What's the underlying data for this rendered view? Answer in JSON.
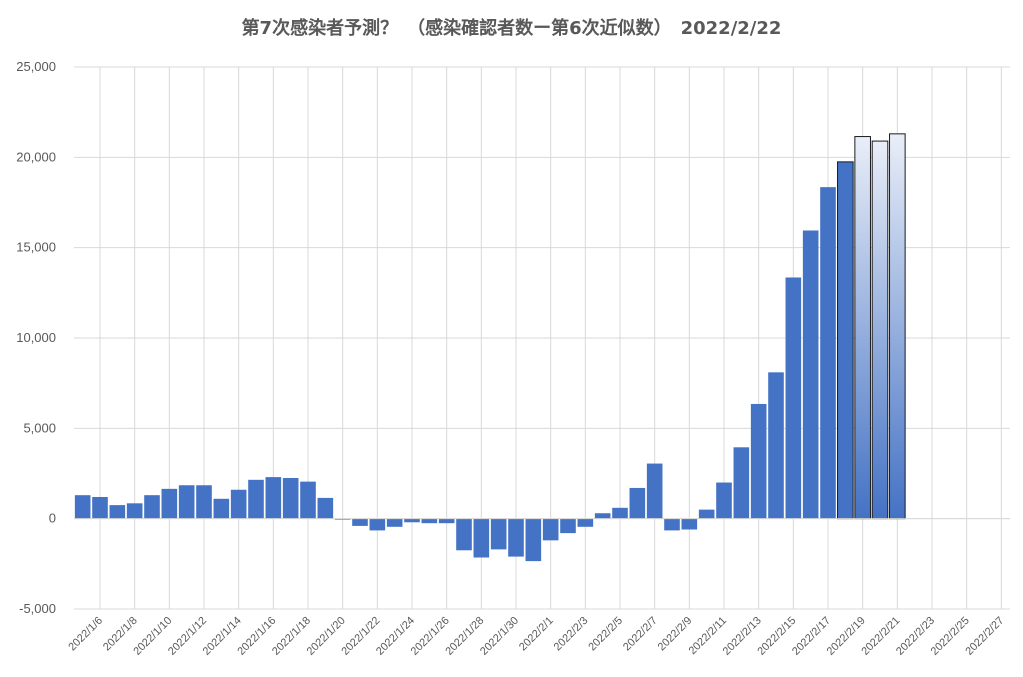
{
  "chart_data": {
    "type": "bar",
    "title": "第7次感染者予測？　（感染確認者数ー第6次近似数）　2022/2/22",
    "xlabel": "",
    "ylabel": "",
    "ylim": [
      -5000,
      25000
    ],
    "y_ticks": [
      "-5,000",
      "0",
      "5,000",
      "10,000",
      "15,000",
      "20,000",
      "25,000"
    ],
    "grid": true,
    "legend": "none",
    "x_tick_labels": [
      "2022/1/6",
      "2022/1/8",
      "2022/1/10",
      "2022/1/12",
      "2022/1/14",
      "2022/1/16",
      "2022/1/18",
      "2022/1/20",
      "2022/1/22",
      "2022/1/24",
      "2022/1/26",
      "2022/1/28",
      "2022/1/30",
      "2022/2/1",
      "2022/2/3",
      "2022/2/5",
      "2022/2/7",
      "2022/2/9",
      "2022/2/11",
      "2022/2/13",
      "2022/2/15",
      "2022/2/17",
      "2022/2/19",
      "2022/2/21",
      "2022/2/23",
      "2022/2/25",
      "2022/2/27"
    ],
    "categories": [
      "2022/1/5",
      "2022/1/6",
      "2022/1/7",
      "2022/1/8",
      "2022/1/9",
      "2022/1/10",
      "2022/1/11",
      "2022/1/12",
      "2022/1/13",
      "2022/1/14",
      "2022/1/15",
      "2022/1/16",
      "2022/1/17",
      "2022/1/18",
      "2022/1/19",
      "2022/1/20",
      "2022/1/21",
      "2022/1/22",
      "2022/1/23",
      "2022/1/24",
      "2022/1/25",
      "2022/1/26",
      "2022/1/27",
      "2022/1/28",
      "2022/1/29",
      "2022/1/30",
      "2022/1/31",
      "2022/2/1",
      "2022/2/2",
      "2022/2/3",
      "2022/2/4",
      "2022/2/5",
      "2022/2/6",
      "2022/2/7",
      "2022/2/8",
      "2022/2/9",
      "2022/2/10",
      "2022/2/11",
      "2022/2/12",
      "2022/2/13",
      "2022/2/14",
      "2022/2/15",
      "2022/2/16",
      "2022/2/17",
      "2022/2/18",
      "2022/2/19",
      "2022/2/20",
      "2022/2/21",
      "2022/2/22",
      "2022/2/23",
      "2022/2/24",
      "2022/2/25",
      "2022/2/26",
      "2022/2/27"
    ],
    "series": [
      {
        "values": [
          1300,
          1200,
          750,
          850,
          1300,
          1650,
          1850,
          1850,
          1100,
          1600,
          2150,
          2300,
          2250,
          2050,
          1150,
          -50,
          -400,
          -650,
          -450,
          -200,
          -250,
          -250,
          -1750,
          -2150,
          -1700,
          -2100,
          -2350,
          -1200,
          -800,
          -450,
          300,
          600,
          1700,
          3050,
          -650,
          -600,
          500,
          2000,
          3950,
          6350,
          8100,
          13350,
          15950,
          18350,
          19750,
          21150,
          20900,
          21300,
          null,
          null,
          null,
          null,
          null,
          null
        ]
      }
    ],
    "colors": {
      "bar": "#4472C4",
      "projected_bar_top": "#E9EEF8",
      "projected_bar_bottom": "#4472C4",
      "outline": "#1a1a1a",
      "grid": "#D9D9D9",
      "text": "#595959"
    },
    "projected_from_index": 45,
    "outlined_from_index": 44
  }
}
